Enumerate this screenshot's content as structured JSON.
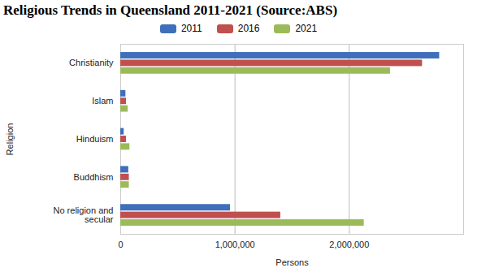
{
  "chart_data": {
    "type": "bar",
    "orientation": "horizontal",
    "title": "Religious Trends in Queensland 2011-2021 (Source:ABS)",
    "x_label": "Persons",
    "y_label": "Religion",
    "categories": [
      "Christianity",
      "Islam",
      "Hinduism",
      "Buddhism",
      "No religion and secular"
    ],
    "series": [
      {
        "name": "2011",
        "color": "#3f6fba",
        "values": [
          2790000,
          45000,
          30000,
          70000,
          960000
        ]
      },
      {
        "name": "2016",
        "color": "#c0504d",
        "values": [
          2640000,
          50000,
          50000,
          75000,
          1400000
        ]
      },
      {
        "name": "2021",
        "color": "#9bbb59",
        "values": [
          2360000,
          65000,
          80000,
          75000,
          2130000
        ]
      }
    ],
    "xlim": [
      0,
      3000000
    ],
    "xticks": [
      0,
      {
        "value": 1000000,
        "label": "1,000,000"
      },
      {
        "value": 2000000,
        "label": "2,000,000"
      }
    ],
    "grid": true,
    "legend": "top"
  }
}
